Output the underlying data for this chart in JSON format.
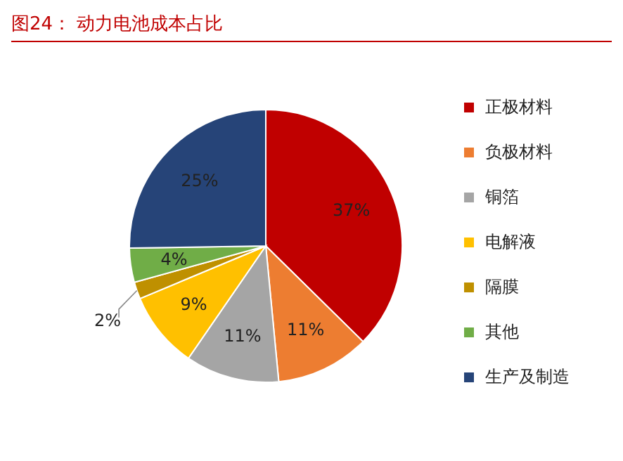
{
  "chart_data": {
    "type": "pie",
    "title": "图24：  动力电池成本占比",
    "categories": [
      "正极材料",
      "负极材料",
      "铜箔",
      "电解液",
      "隔膜",
      "其他",
      "生产及制造"
    ],
    "values": [
      37,
      11,
      11,
      9,
      2,
      4,
      25
    ],
    "colors": [
      "#c00000",
      "#ed7d31",
      "#a5a5a5",
      "#ffc000",
      "#bf9000",
      "#70ad47",
      "#264478"
    ],
    "value_labels": [
      "37%",
      "11%",
      "11%",
      "9%",
      "2%",
      "4%",
      "25%"
    ],
    "legend": "right"
  }
}
